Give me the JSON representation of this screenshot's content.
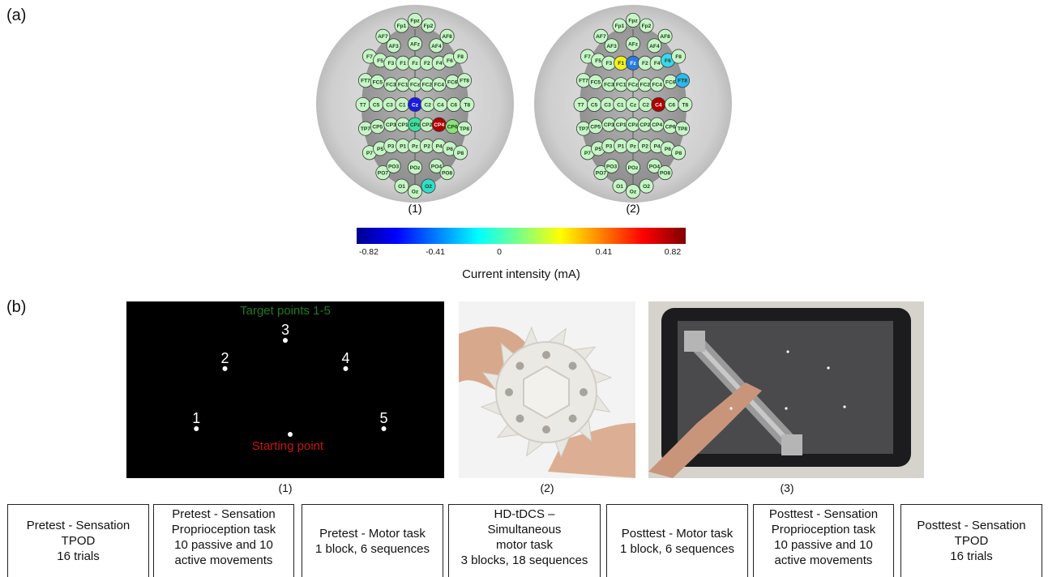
{
  "panel_a": {
    "label": "(a)",
    "montage1_label": "(1)",
    "montage2_label": "(2)",
    "electrodes": [
      {
        "id": "Fpz",
        "c": 0,
        "r": 0
      },
      {
        "id": "Fp1",
        "c": -1,
        "r": 0.4
      },
      {
        "id": "Fp2",
        "c": 1,
        "r": 0.4
      },
      {
        "id": "AF7",
        "c": -2.4,
        "r": 1.2
      },
      {
        "id": "AF3",
        "c": -1.6,
        "r": 1.9
      },
      {
        "id": "AFz",
        "c": 0,
        "r": 1.75
      },
      {
        "id": "AF4",
        "c": 1.6,
        "r": 1.9
      },
      {
        "id": "AF8",
        "c": 2.4,
        "r": 1.2
      },
      {
        "id": "F7",
        "c": -3.4,
        "r": 2.7
      },
      {
        "id": "F5",
        "c": -2.6,
        "r": 3.0
      },
      {
        "id": "F3",
        "c": -1.8,
        "r": 3.2
      },
      {
        "id": "F1",
        "c": -0.9,
        "r": 3.2
      },
      {
        "id": "Fz",
        "c": 0,
        "r": 3.2
      },
      {
        "id": "F2",
        "c": 0.9,
        "r": 3.2
      },
      {
        "id": "F4",
        "c": 1.8,
        "r": 3.2
      },
      {
        "id": "F6",
        "c": 2.6,
        "r": 3.0
      },
      {
        "id": "F8",
        "c": 3.4,
        "r": 2.7
      },
      {
        "id": "FT7",
        "c": -3.7,
        "r": 4.5
      },
      {
        "id": "FC5",
        "c": -2.8,
        "r": 4.6
      },
      {
        "id": "FC3",
        "c": -1.8,
        "r": 4.8
      },
      {
        "id": "FC1",
        "c": -0.9,
        "r": 4.8
      },
      {
        "id": "FCz",
        "c": 0,
        "r": 4.8
      },
      {
        "id": "FC2",
        "c": 0.9,
        "r": 4.8
      },
      {
        "id": "FC4",
        "c": 1.8,
        "r": 4.8
      },
      {
        "id": "FC6",
        "c": 2.8,
        "r": 4.6
      },
      {
        "id": "FT8",
        "c": 3.7,
        "r": 4.5
      },
      {
        "id": "T7",
        "c": -3.9,
        "r": 6.3
      },
      {
        "id": "C5",
        "c": -2.9,
        "r": 6.3
      },
      {
        "id": "C3",
        "c": -1.9,
        "r": 6.3
      },
      {
        "id": "C1",
        "c": -0.95,
        "r": 6.3
      },
      {
        "id": "Cz",
        "c": 0,
        "r": 6.3
      },
      {
        "id": "C2",
        "c": 0.95,
        "r": 6.3
      },
      {
        "id": "C4",
        "c": 1.9,
        "r": 6.3
      },
      {
        "id": "C6",
        "c": 2.9,
        "r": 6.3
      },
      {
        "id": "T8",
        "c": 3.9,
        "r": 6.3
      },
      {
        "id": "TP7",
        "c": -3.7,
        "r": 8.1
      },
      {
        "id": "CP5",
        "c": -2.8,
        "r": 7.95
      },
      {
        "id": "CP3",
        "c": -1.8,
        "r": 7.8
      },
      {
        "id": "CP1",
        "c": -0.9,
        "r": 7.8
      },
      {
        "id": "CPz",
        "c": 0,
        "r": 7.8
      },
      {
        "id": "CP2",
        "c": 0.9,
        "r": 7.8
      },
      {
        "id": "CP4",
        "c": 1.8,
        "r": 7.8
      },
      {
        "id": "CP6",
        "c": 2.8,
        "r": 7.95
      },
      {
        "id": "TP8",
        "c": 3.7,
        "r": 8.1
      },
      {
        "id": "P7",
        "c": -3.4,
        "r": 9.9
      },
      {
        "id": "P5",
        "c": -2.6,
        "r": 9.6
      },
      {
        "id": "P3",
        "c": -1.8,
        "r": 9.4
      },
      {
        "id": "P1",
        "c": -0.9,
        "r": 9.4
      },
      {
        "id": "Pz",
        "c": 0,
        "r": 9.4
      },
      {
        "id": "P2",
        "c": 0.9,
        "r": 9.4
      },
      {
        "id": "P4",
        "c": 1.8,
        "r": 9.4
      },
      {
        "id": "P6",
        "c": 2.6,
        "r": 9.6
      },
      {
        "id": "P8",
        "c": 3.4,
        "r": 9.9
      },
      {
        "id": "PO7",
        "c": -2.4,
        "r": 11.4
      },
      {
        "id": "PO3",
        "c": -1.6,
        "r": 10.9
      },
      {
        "id": "POz",
        "c": 0,
        "r": 11.0
      },
      {
        "id": "PO4",
        "c": 1.6,
        "r": 10.9
      },
      {
        "id": "PO8",
        "c": 2.4,
        "r": 11.4
      },
      {
        "id": "O1",
        "c": -1.0,
        "r": 12.4
      },
      {
        "id": "Oz",
        "c": 0,
        "r": 12.8
      },
      {
        "id": "O2",
        "c": 1.0,
        "r": 12.4
      }
    ],
    "montage1_active": [
      {
        "id": "Cz",
        "value": -0.82,
        "color": "#1a1ae6"
      },
      {
        "id": "CP4",
        "value": 0.82,
        "color": "#b00000"
      },
      {
        "id": "CPz",
        "value": -0.2,
        "color": "#3de0a0"
      },
      {
        "id": "CP6",
        "value": -0.1,
        "color": "#8be37a"
      },
      {
        "id": "O2",
        "value": -0.25,
        "color": "#30e0c8"
      }
    ],
    "montage2_active": [
      {
        "id": "Fz",
        "value": -0.6,
        "color": "#2a7be0"
      },
      {
        "id": "F1",
        "value": 0.3,
        "color": "#f0f020"
      },
      {
        "id": "F6",
        "value": -0.4,
        "color": "#3ad8f0"
      },
      {
        "id": "FT8",
        "value": -0.5,
        "color": "#2cb8f0"
      },
      {
        "id": "C4",
        "value": 0.82,
        "color": "#b00000"
      }
    ],
    "colorbar": {
      "ticks": [
        "-0.82",
        "-0.41",
        "0",
        "0.41",
        "0.82"
      ],
      "title": "Current intensity (mA)"
    }
  },
  "panel_b": {
    "label": "(b)",
    "screen": {
      "title": "Target points 1-5",
      "start_label": "Starting point",
      "targets": [
        {
          "label": "1",
          "sx": 0.22,
          "sy": 0.72
        },
        {
          "label": "2",
          "sx": 0.31,
          "sy": 0.38
        },
        {
          "label": "3",
          "sx": 0.5,
          "sy": 0.22
        },
        {
          "label": "4",
          "sx": 0.69,
          "sy": 0.38
        },
        {
          "label": "5",
          "sx": 0.81,
          "sy": 0.72
        }
      ],
      "title_color": "#1f7a1f",
      "start_color": "#c81414"
    },
    "sub_labels": [
      "(1)",
      "(2)",
      "(3)"
    ]
  },
  "protocol_steps": [
    {
      "lines": [
        "Pretest - Sensation",
        "TPOD",
        "16 trials"
      ]
    },
    {
      "lines": [
        "Pretest - Sensation",
        "Proprioception task",
        "10 passive and 10",
        "active movements"
      ]
    },
    {
      "lines": [
        "Pretest - Motor task",
        "1 block, 6 sequences"
      ]
    },
    {
      "lines": [
        "HD-tDCS –",
        "Simultaneous",
        "motor task",
        "3 blocks, 18 sequences"
      ]
    },
    {
      "lines": [
        "Posttest - Motor task",
        "1 block, 6 sequences"
      ]
    },
    {
      "lines": [
        "Posttest - Sensation",
        "Proprioception task",
        "10 passive and 10",
        "active movements"
      ]
    },
    {
      "lines": [
        "Posttest - Sensation",
        "TPOD",
        "16 trials"
      ]
    }
  ]
}
